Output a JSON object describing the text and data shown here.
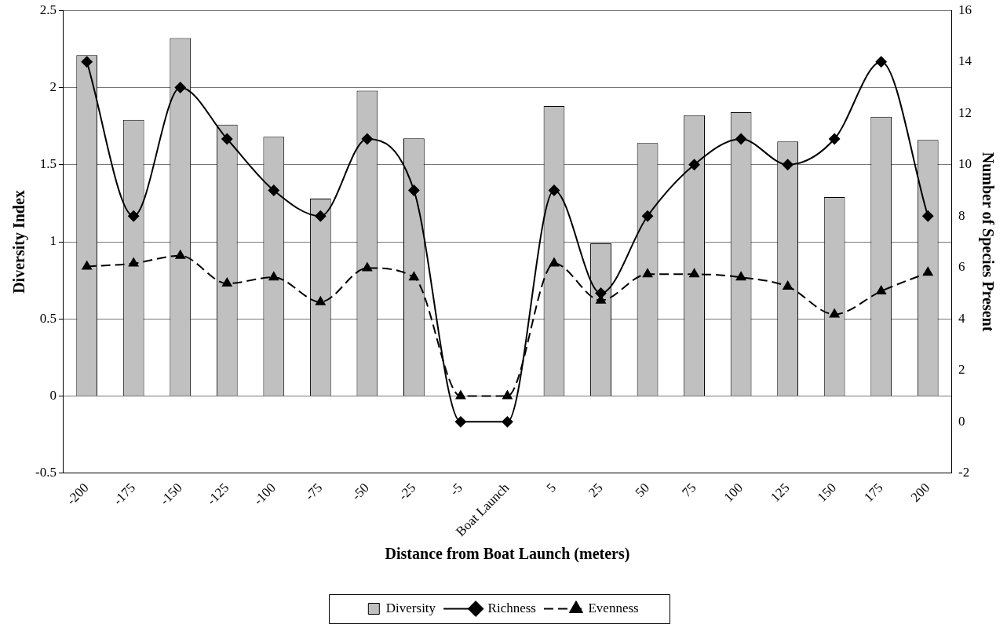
{
  "chart_data": {
    "type": "bar",
    "xlabel": "Distance from Boat Launch (meters)",
    "ylabel": "Diversity Index",
    "y2label": "Number of Species Present",
    "categories": [
      "-200",
      "-175",
      "-150",
      "-125",
      "-100",
      "-75",
      "-50",
      "-25",
      "-5",
      "Boat Launch",
      "5",
      "25",
      "50",
      "75",
      "100",
      "125",
      "150",
      "175",
      "200"
    ],
    "series": [
      {
        "name": "Diversity",
        "color": "#c0c0c0",
        "values": [
          2.21,
          1.79,
          2.32,
          1.76,
          1.68,
          1.28,
          1.98,
          1.67,
          null,
          null,
          1.88,
          0.99,
          1.64,
          1.82,
          1.84,
          1.65,
          1.29,
          1.81,
          1.66
        ]
      },
      {
        "name": "Richness",
        "type": "line",
        "axis": "y2",
        "color": "#000000",
        "marker": "diamond",
        "line_style": "solid",
        "values": [
          14,
          8,
          13,
          11,
          9,
          8,
          11,
          9,
          0,
          0,
          9,
          5,
          8,
          10,
          11,
          10,
          11,
          14,
          8
        ]
      },
      {
        "name": "Evenness",
        "type": "line",
        "color": "#000000",
        "marker": "triangle",
        "line_style": "dashed",
        "values": [
          0.84,
          0.86,
          0.91,
          0.73,
          0.77,
          0.61,
          0.83,
          0.77,
          0,
          0,
          0.86,
          0.62,
          0.79,
          0.79,
          0.77,
          0.71,
          0.53,
          0.68,
          0.8
        ]
      }
    ],
    "ylim": [
      -0.5,
      2.5
    ],
    "yticks": [
      -0.5,
      0,
      0.5,
      1,
      1.5,
      2,
      2.5
    ],
    "y2lim": [
      -2,
      16
    ],
    "y2ticks": [
      -2,
      0,
      2,
      4,
      6,
      8,
      10,
      12,
      14,
      16
    ],
    "grid": "y",
    "legend": "bottom"
  }
}
